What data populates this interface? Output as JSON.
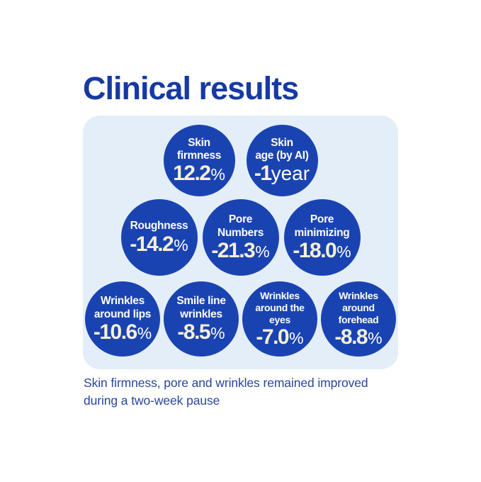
{
  "title": "Clinical results",
  "caption": "Skin firmness, pore and wrinkles remained improved during a two-week pause",
  "colors": {
    "title": "#1639A4",
    "bubble": "#1A43B2",
    "panel": "#E3EEF8",
    "number": "#F7F0D8",
    "label": "#FFFFFF",
    "caption": "#2B459C",
    "page": "#FFFFFF"
  },
  "stats": [
    {
      "label": "Skin\nfirmness",
      "value": "12.2",
      "suffix": "%"
    },
    {
      "label": "Skin\nage (by AI)",
      "value": "-1",
      "suffix": "year"
    },
    {
      "label": "Roughness",
      "value": "-14.2",
      "suffix": "%"
    },
    {
      "label": "Pore\nNumbers",
      "value": "-21.3",
      "suffix": "%"
    },
    {
      "label": "Pore\nminimizing",
      "value": "-18.0",
      "suffix": "%"
    },
    {
      "label": "Wrinkles\naround lips",
      "value": "-10.6",
      "suffix": "%"
    },
    {
      "label": "Smile line\nwrinkles",
      "value": "-8.5",
      "suffix": "%"
    },
    {
      "label": "Wrinkles\naround the\neyes",
      "value": "-7.0",
      "suffix": "%"
    },
    {
      "label": "Wrinkles\naround\nforehead",
      "value": "-8.8",
      "suffix": "%"
    }
  ],
  "chart_data": {
    "type": "table",
    "title": "Clinical results",
    "categories": [
      "Skin firmness",
      "Skin age (by AI)",
      "Roughness",
      "Pore Numbers",
      "Pore minimizing",
      "Wrinkles around lips",
      "Smile line wrinkles",
      "Wrinkles around the eyes",
      "Wrinkles around forehead"
    ],
    "values": [
      "12.2%",
      "-1 year",
      "-14.2%",
      "-21.3%",
      "-18.0%",
      "-10.6%",
      "-8.5%",
      "-7.0%",
      "-8.8%"
    ],
    "values_numeric_percent": [
      12.2,
      null,
      -14.2,
      -21.3,
      -18.0,
      -10.6,
      -8.5,
      -7.0,
      -8.8
    ],
    "footnote": "Skin firmness, pore and wrinkles remained improved during a two-week pause",
    "legend_position": "none",
    "grid": false
  }
}
